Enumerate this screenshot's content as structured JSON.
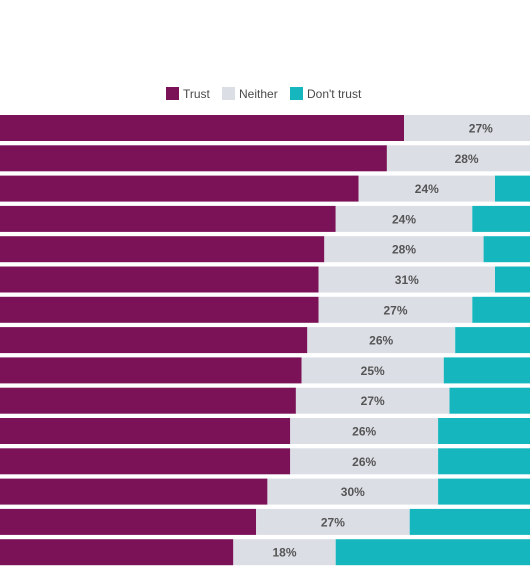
{
  "chart_data": {
    "type": "bar",
    "orientation": "horizontal",
    "stacked": true,
    "legend": {
      "position": "top",
      "entries": [
        "Trust",
        "Neither",
        "Don't trust"
      ]
    },
    "colors": {
      "Trust": "#7b1157",
      "Neither": "#dcdee6",
      "Don't trust": "#16b6be"
    },
    "categories": [
      "",
      "",
      "",
      "",
      "",
      "",
      "",
      "",
      "",
      "",
      "",
      "",
      "",
      "",
      ""
    ],
    "series": [
      {
        "name": "Trust",
        "values": [
          71,
          68,
          63,
          59,
          57,
          56,
          56,
          54,
          53,
          52,
          51,
          51,
          47,
          45,
          41
        ]
      },
      {
        "name": "Neither",
        "values": [
          27,
          28,
          24,
          24,
          28,
          31,
          27,
          26,
          25,
          27,
          26,
          26,
          30,
          27,
          18
        ]
      },
      {
        "name": "Don't trust",
        "values": [
          2,
          4,
          13,
          17,
          15,
          13,
          17,
          20,
          22,
          21,
          23,
          23,
          23,
          28,
          41
        ]
      }
    ],
    "data_labels": [
      "27%",
      "28%",
      "24%",
      "24%",
      "28%",
      "31%",
      "27%",
      "26%",
      "25%",
      "27%",
      "26%",
      "26%",
      "30%",
      "27%",
      "18%"
    ],
    "xlim": [
      0,
      100
    ]
  }
}
